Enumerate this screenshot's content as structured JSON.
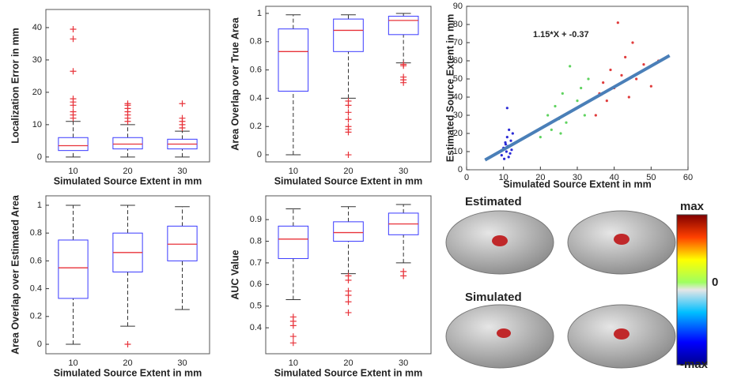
{
  "chart_data": [
    {
      "type": "box",
      "xlabel": "Simulated Source Extent in mm",
      "ylabel": "Localization Error in mm",
      "categories": [
        "10",
        "20",
        "30"
      ],
      "ylim": [
        -1.5,
        45.6
      ],
      "yticks": [
        0,
        10,
        20,
        30,
        40
      ],
      "color": "#3a3aff",
      "median_color": "#e8333a",
      "outlier_color": "#e8333a",
      "boxes": [
        {
          "min": 0,
          "q1": 2,
          "median": 3.5,
          "q3": 6,
          "max": 11,
          "outliers": [
            12,
            13,
            14,
            16,
            17,
            18,
            26.5,
            36.5,
            39.5
          ]
        },
        {
          "min": 0,
          "q1": 2.5,
          "median": 4,
          "q3": 6,
          "max": 10,
          "outliers": [
            11,
            12,
            13,
            14,
            15,
            16,
            16.5
          ]
        },
        {
          "min": 0,
          "q1": 2.5,
          "median": 4,
          "q3": 5.5,
          "max": 8,
          "outliers": [
            9,
            10,
            11,
            12,
            16.5
          ]
        }
      ]
    },
    {
      "type": "box",
      "xlabel": "Simulated Source Extent in mm",
      "ylabel": "Area Overlap over True Area",
      "categories": [
        "10",
        "20",
        "30"
      ],
      "ylim": [
        -0.05,
        1.05
      ],
      "yticks": [
        0,
        0.2,
        0.4,
        0.6,
        0.8,
        1
      ],
      "color": "#3a3aff",
      "median_color": "#e8333a",
      "outlier_color": "#e8333a",
      "boxes": [
        {
          "min": 0,
          "q1": 0.45,
          "median": 0.73,
          "q3": 0.89,
          "max": 0.99,
          "outliers": []
        },
        {
          "min": 0.4,
          "q1": 0.73,
          "median": 0.88,
          "q3": 0.96,
          "max": 0.99,
          "outliers": [
            0.38,
            0.35,
            0.3,
            0.25,
            0.2,
            0.18,
            0.16,
            0
          ]
        },
        {
          "min": 0.65,
          "q1": 0.85,
          "median": 0.95,
          "q3": 0.98,
          "max": 1,
          "outliers": [
            0.64,
            0.63,
            0.55,
            0.53,
            0.51
          ]
        }
      ]
    },
    {
      "type": "scatter",
      "xlabel": "Simulated Source Extent in mm",
      "ylabel": "Estimated Source Extent in mm",
      "xlim": [
        0,
        60
      ],
      "ylim": [
        0,
        90
      ],
      "xticks": [
        0,
        10,
        20,
        30,
        40,
        50,
        60
      ],
      "yticks": [
        0,
        10,
        20,
        30,
        40,
        50,
        60,
        70,
        80,
        90
      ],
      "annotation": "1.15*X + -0.37",
      "series": [
        {
          "color": "#2b2bd6",
          "x": [
            9.5,
            10,
            10.2,
            10.5,
            10.8,
            11,
            11,
            11.2,
            11.5,
            11.8,
            12,
            12.2,
            12.5,
            10.6,
            11.4
          ],
          "y": [
            8,
            12,
            6,
            15,
            10,
            34,
            18,
            13,
            22,
            9,
            16,
            11,
            20,
            14,
            7
          ]
        },
        {
          "color": "#5fd35f",
          "x": [
            20,
            21,
            22,
            23,
            24,
            25,
            26,
            27,
            28,
            29,
            30,
            31,
            32,
            33,
            25.5
          ],
          "y": [
            18,
            24,
            30,
            22,
            35,
            28,
            42,
            26,
            57,
            33,
            38,
            45,
            30,
            50,
            20
          ]
        },
        {
          "color": "#e03c3c",
          "x": [
            35,
            36,
            37,
            38,
            39,
            40,
            41,
            42,
            43,
            44,
            45,
            46,
            48,
            50,
            52
          ],
          "y": [
            30,
            42,
            48,
            38,
            55,
            45,
            81,
            52,
            62,
            40,
            70,
            50,
            58,
            46,
            60
          ]
        }
      ],
      "fit": {
        "color": "#4a7fb8",
        "x": [
          5,
          55
        ],
        "y": [
          5.38,
          62.88
        ]
      }
    },
    {
      "type": "box",
      "xlabel": "Simulated Source Extent in mm",
      "ylabel": "Area Overlap over Estimated Area",
      "categories": [
        "10",
        "20",
        "30"
      ],
      "ylim": [
        -0.068,
        1.068
      ],
      "yticks": [
        0,
        0.2,
        0.4,
        0.6,
        0.8,
        1
      ],
      "color": "#3a3aff",
      "median_color": "#e8333a",
      "outlier_color": "#e8333a",
      "boxes": [
        {
          "min": 0,
          "q1": 0.33,
          "median": 0.55,
          "q3": 0.75,
          "max": 1,
          "outliers": []
        },
        {
          "min": 0.13,
          "q1": 0.52,
          "median": 0.66,
          "q3": 0.8,
          "max": 1,
          "outliers": [
            0
          ]
        },
        {
          "min": 0.25,
          "q1": 0.6,
          "median": 0.72,
          "q3": 0.85,
          "max": 0.99,
          "outliers": []
        }
      ]
    },
    {
      "type": "box",
      "xlabel": "Simulated Source Extent in mm",
      "ylabel": "AUC Value",
      "categories": [
        "10",
        "20",
        "30"
      ],
      "ylim": [
        0.28,
        1.01
      ],
      "yticks": [
        0.4,
        0.5,
        0.6,
        0.7,
        0.8,
        0.9
      ],
      "color": "#3a3aff",
      "median_color": "#e8333a",
      "outlier_color": "#e8333a",
      "boxes": [
        {
          "min": 0.53,
          "q1": 0.72,
          "median": 0.81,
          "q3": 0.87,
          "max": 0.95,
          "outliers": [
            0.45,
            0.43,
            0.41,
            0.36,
            0.33
          ]
        },
        {
          "min": 0.65,
          "q1": 0.8,
          "median": 0.84,
          "q3": 0.89,
          "max": 0.96,
          "outliers": [
            0.64,
            0.62,
            0.57,
            0.55,
            0.52,
            0.47
          ]
        },
        {
          "min": 0.7,
          "q1": 0.83,
          "median": 0.88,
          "q3": 0.93,
          "max": 0.97,
          "outliers": [
            0.66,
            0.64
          ]
        }
      ]
    }
  ],
  "brain_panel": {
    "labels": [
      "Estimated",
      "Simulated"
    ],
    "colorbar": [
      "max",
      "0",
      "-max"
    ]
  }
}
